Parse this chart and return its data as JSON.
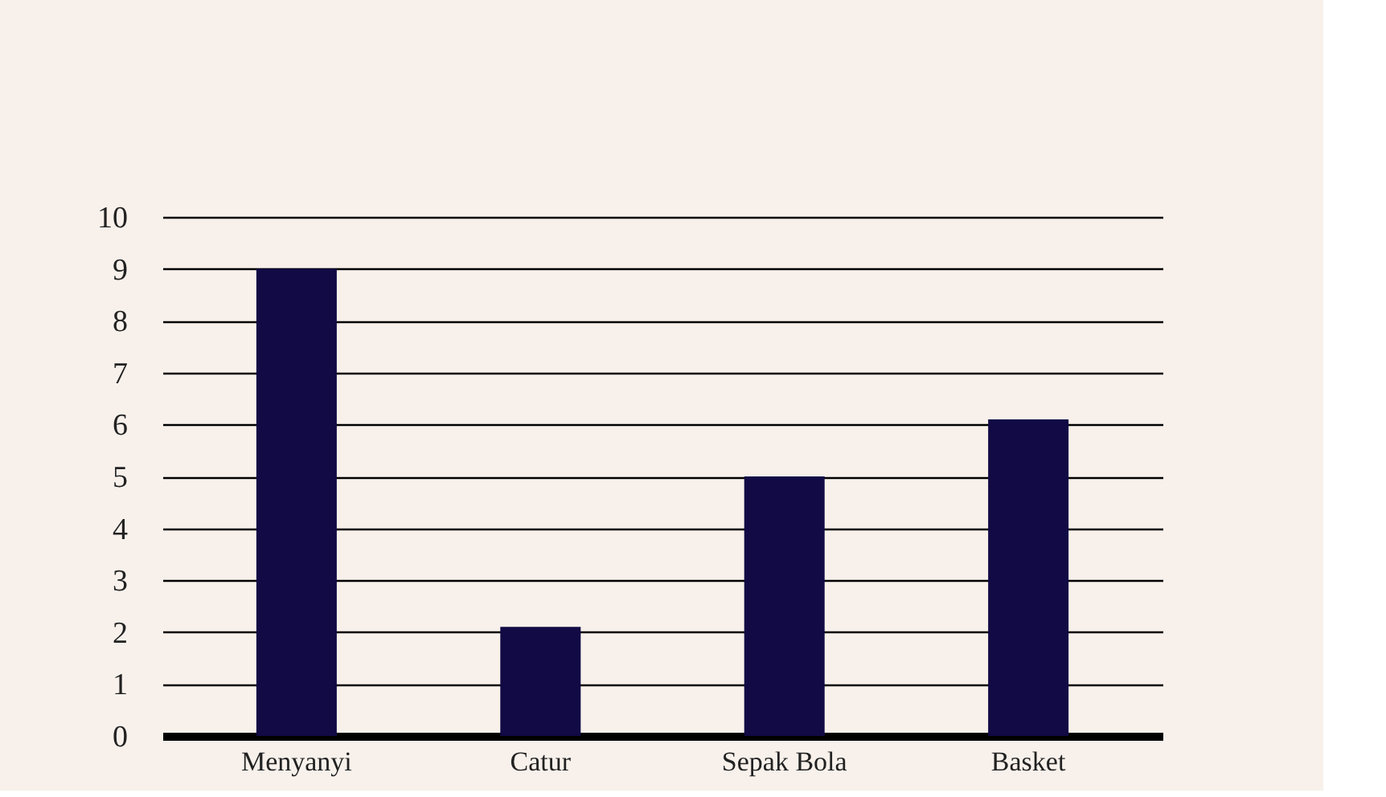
{
  "chart_data": {
    "type": "bar",
    "categories": [
      "Menyanyi",
      "Catur",
      "Sepak Bola",
      "Basket"
    ],
    "values": [
      9,
      2.1,
      5,
      6.1
    ],
    "color": "#110a45",
    "ylim": [
      0,
      10
    ],
    "yticks": [
      0,
      1,
      2,
      3,
      4,
      5,
      6,
      7,
      8,
      9,
      10
    ],
    "grid": "y"
  }
}
